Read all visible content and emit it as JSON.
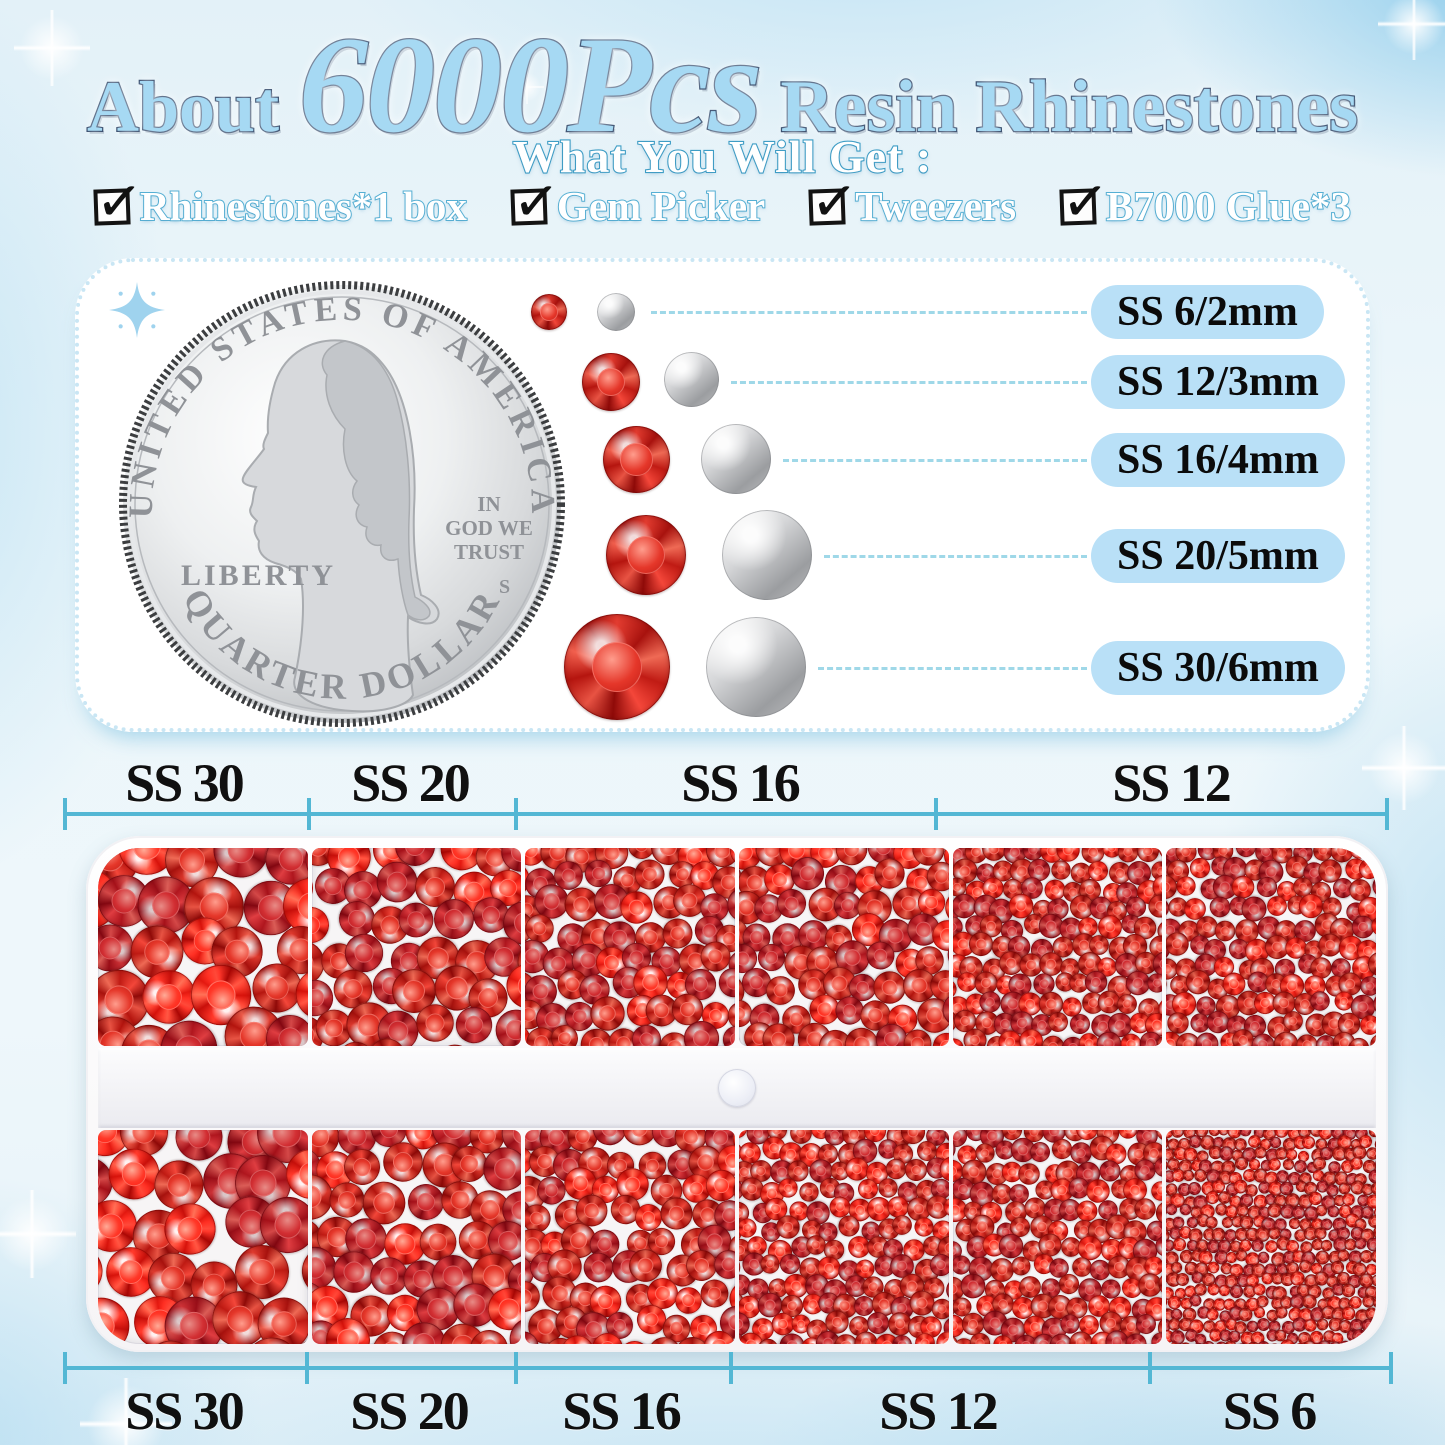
{
  "page_title": "About 6000Pcs Resin Rhinestones",
  "header": {
    "title_prefix": "About",
    "title_count": "6000Pcs",
    "title_suffix": "Resin Rhinestones",
    "subtitle": "What You Will Get :",
    "checkmark": "✓",
    "includes": [
      {
        "label": "Rhinestones*1 box",
        "checked": true
      },
      {
        "label": "Gem Picker",
        "checked": true
      },
      {
        "label": "Tweezers",
        "checked": true
      },
      {
        "label": "B7000 Glue*3",
        "checked": true
      }
    ]
  },
  "coin": {
    "top_text": "UNITED STATES OF AMERICA",
    "liberty": "LIBERTY",
    "motto_line1": "IN",
    "motto_line2": "GOD WE",
    "motto_line3": "TRUST",
    "mint_mark": "S",
    "bottom_text": "QUARTER DOLLAR"
  },
  "size_chart": {
    "rows": [
      {
        "label": "SS 6/2mm",
        "mm": 2
      },
      {
        "label": "SS 12/3mm",
        "mm": 3
      },
      {
        "label": "SS 16/4mm",
        "mm": 4
      },
      {
        "label": "SS 20/5mm",
        "mm": 5
      },
      {
        "label": "SS 30/6mm",
        "mm": 6
      }
    ]
  },
  "tray": {
    "top_scale_labels": [
      {
        "label": "SS 30"
      },
      {
        "label": "SS 20"
      },
      {
        "label": "SS 16"
      },
      {
        "label": "SS 12"
      }
    ],
    "bottom_scale_labels": [
      {
        "label": "SS 30"
      },
      {
        "label": "SS 20"
      },
      {
        "label": "SS 16"
      },
      {
        "label": "SS 12"
      },
      {
        "label": "SS 6"
      }
    ],
    "cells": [
      {
        "row": "top",
        "size": "SS 30",
        "mm": 6
      },
      {
        "row": "top",
        "size": "SS 20",
        "mm": 5
      },
      {
        "row": "top",
        "size": "SS 16",
        "mm": 4
      },
      {
        "row": "top",
        "size": "SS 16",
        "mm": 4
      },
      {
        "row": "top",
        "size": "SS 12",
        "mm": 3
      },
      {
        "row": "top",
        "size": "SS 12",
        "mm": 3
      },
      {
        "row": "bottom",
        "size": "SS 30",
        "mm": 6
      },
      {
        "row": "bottom",
        "size": "SS 20",
        "mm": 5
      },
      {
        "row": "bottom",
        "size": "SS 16",
        "mm": 4
      },
      {
        "row": "bottom",
        "size": "SS 12",
        "mm": 3
      },
      {
        "row": "bottom",
        "size": "SS 12",
        "mm": 3
      },
      {
        "row": "bottom",
        "size": "SS 6",
        "mm": 2
      }
    ]
  },
  "colors": {
    "title_fill": "#a6d9f3",
    "title_outline": "#223a5e",
    "subtitle_outline": "#3e9ec6",
    "pill_bg": "#b9e0f7",
    "scale_line": "#53b7d4",
    "stone_red": "#e23c30",
    "background": "#ecf6fa"
  },
  "icons": {
    "panel_sparkle": "sparkle-4point-blue",
    "flares": "sparkle-4point-white",
    "checkbox": "checked-box"
  }
}
